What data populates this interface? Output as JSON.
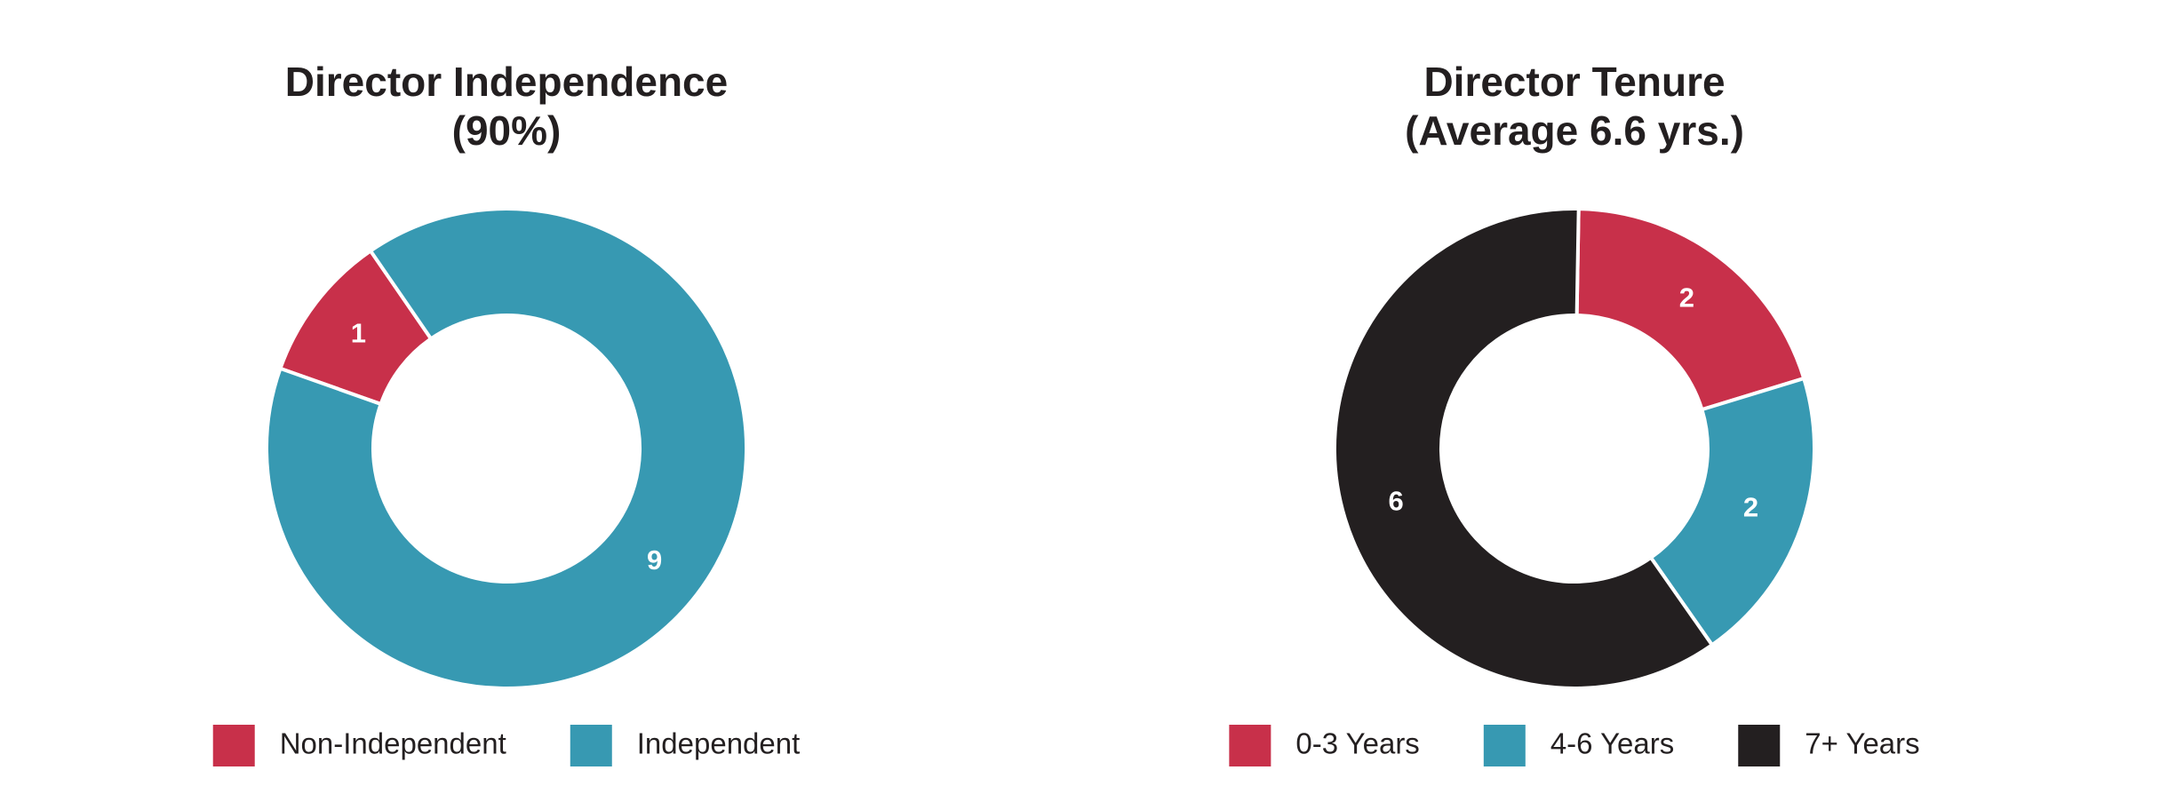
{
  "chart_data": [
    {
      "type": "donut",
      "title": "Director Independence",
      "subtitle": "(90%)",
      "categories": [
        "Non-Independent",
        "Independent"
      ],
      "values": [
        1,
        9
      ],
      "colors": [
        "#c8304a",
        "#3799b2"
      ]
    },
    {
      "type": "donut",
      "title": "Director Tenure",
      "subtitle": "(Average 6.6 yrs.)",
      "categories": [
        "0-3 Years",
        "4-6 Years",
        "7+ Years"
      ],
      "values": [
        2,
        2,
        6
      ],
      "colors": [
        "#c8304a",
        "#3799b2",
        "#231f20"
      ]
    }
  ]
}
